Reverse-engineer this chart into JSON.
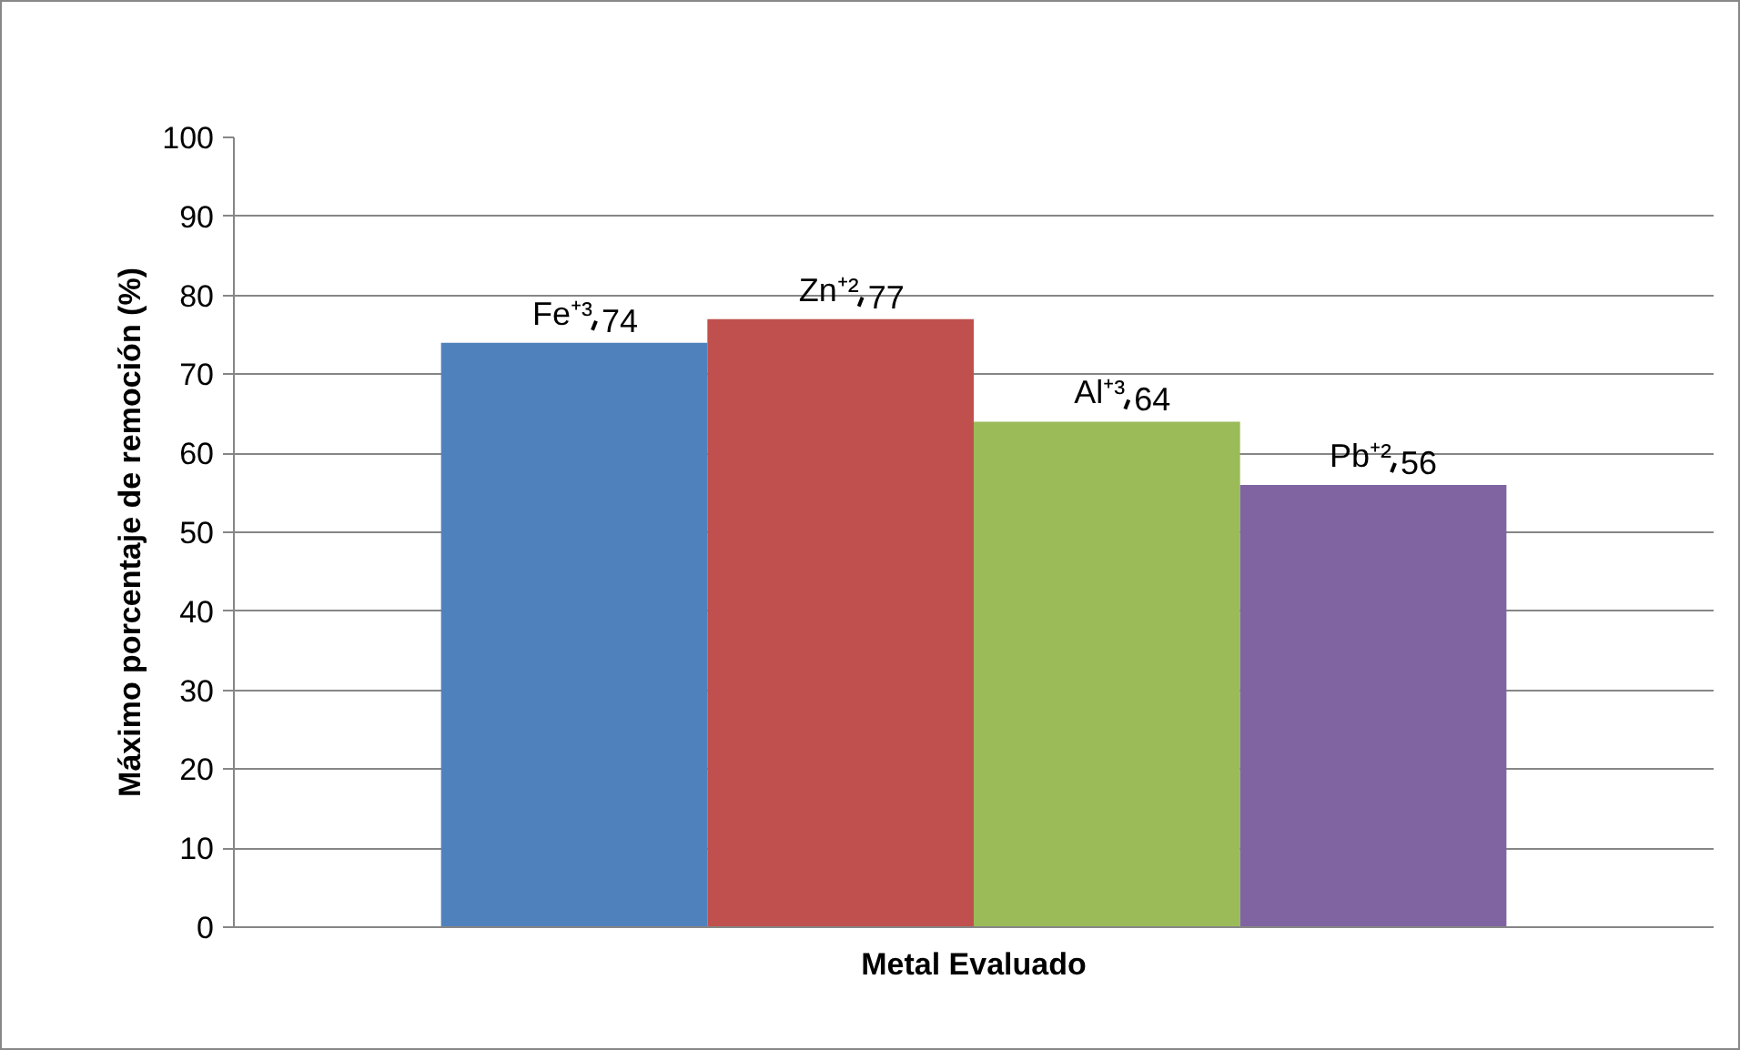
{
  "chart_data": {
    "type": "bar",
    "xlabel": "Metal Evaluado",
    "ylabel": "Máximo porcentaje de remoción (%)",
    "categories": [
      null
    ],
    "series": [
      {
        "name": "Fe⁺³",
        "color": "#4f81bd",
        "values": [
          74
        ]
      },
      {
        "name": "Zn⁺²",
        "color": "#c0504d",
        "values": [
          77
        ]
      },
      {
        "name": "Al⁺³",
        "color": "#9bbb59",
        "values": [
          64
        ]
      },
      {
        "name": "Pb⁺²",
        "color": "#8064a2",
        "values": [
          56
        ]
      }
    ],
    "ylim": [
      0,
      100
    ],
    "yticks": [
      0,
      10,
      20,
      30,
      40,
      50,
      60,
      70,
      80,
      90,
      100
    ],
    "grid": "y",
    "legend": false,
    "data_labels": true
  }
}
